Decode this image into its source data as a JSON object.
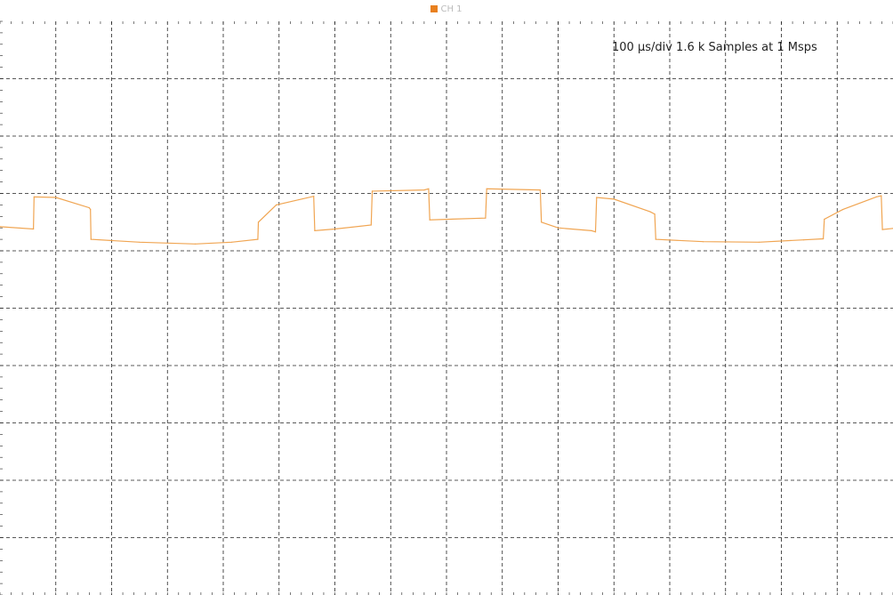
{
  "legend": {
    "label": "CH 1",
    "color": "#e8801e"
  },
  "annotation": "100 µs/div 1.6 k Samples at 1 Msps",
  "colors": {
    "trace": "#f0a552",
    "grid": "#222222",
    "background": "#ffffff"
  },
  "chart_data": {
    "type": "line",
    "title": "",
    "xlabel": "",
    "ylabel": "",
    "grid": true,
    "divisions": {
      "x": 16,
      "y": 10
    },
    "legend_placement": "top-center",
    "xlim": [
      0,
      1600
    ],
    "ylim": [
      0,
      10
    ],
    "x_unit": "µs",
    "y_unit": "div",
    "series": [
      {
        "name": "CH 1",
        "points": [
          [
            0,
            6.42
          ],
          [
            60,
            6.38
          ],
          [
            61,
            6.94
          ],
          [
            100,
            6.93
          ],
          [
            160,
            6.75
          ],
          [
            162,
            6.72
          ],
          [
            163,
            6.2
          ],
          [
            250,
            6.15
          ],
          [
            350,
            6.12
          ],
          [
            415,
            6.15
          ],
          [
            462,
            6.2
          ],
          [
            463,
            6.5
          ],
          [
            495,
            6.8
          ],
          [
            562,
            6.95
          ],
          [
            564,
            6.35
          ],
          [
            600,
            6.38
          ],
          [
            665,
            6.45
          ],
          [
            667,
            7.04
          ],
          [
            760,
            7.06
          ],
          [
            768,
            7.08
          ],
          [
            770,
            6.54
          ],
          [
            870,
            6.57
          ],
          [
            872,
            7.08
          ],
          [
            968,
            7.06
          ],
          [
            970,
            6.5
          ],
          [
            1000,
            6.4
          ],
          [
            1060,
            6.35
          ],
          [
            1067,
            6.33
          ],
          [
            1069,
            6.93
          ],
          [
            1100,
            6.9
          ],
          [
            1165,
            6.68
          ],
          [
            1173,
            6.64
          ],
          [
            1175,
            6.2
          ],
          [
            1260,
            6.16
          ],
          [
            1360,
            6.15
          ],
          [
            1440,
            6.19
          ],
          [
            1475,
            6.21
          ],
          [
            1477,
            6.55
          ],
          [
            1510,
            6.72
          ],
          [
            1570,
            6.94
          ],
          [
            1579,
            6.96
          ],
          [
            1581,
            6.37
          ],
          [
            1600,
            6.39
          ]
        ]
      }
    ]
  }
}
